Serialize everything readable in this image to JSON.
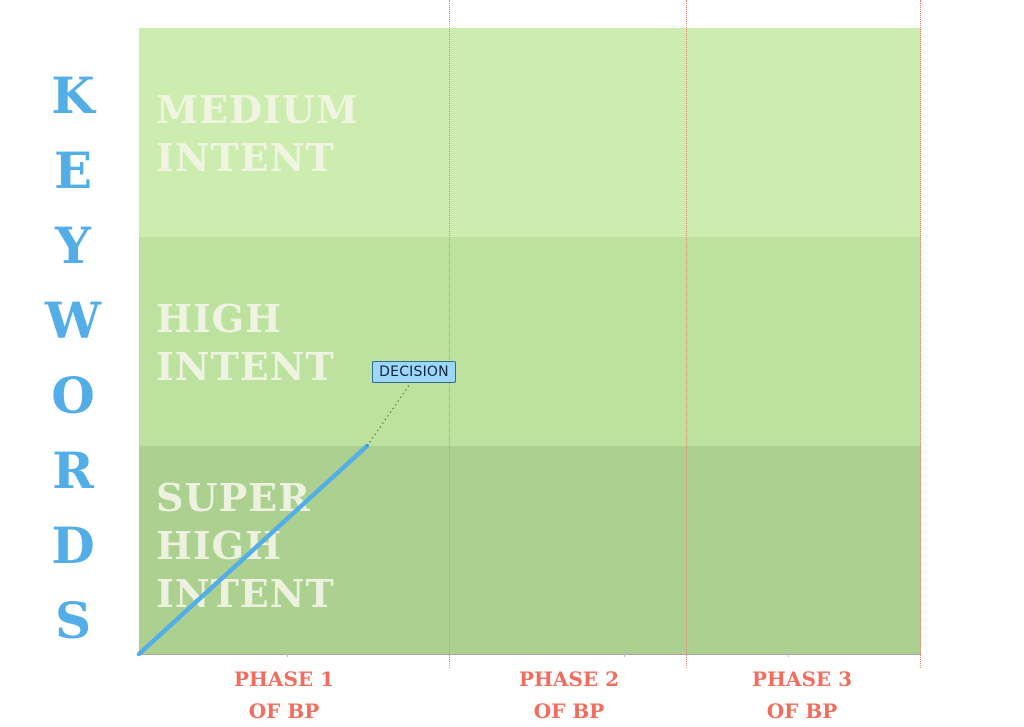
{
  "diagram": {
    "vertical_title_letters": [
      "K",
      "E",
      "Y",
      "W",
      "O",
      "R",
      "D",
      "S"
    ],
    "rows": [
      {
        "label": "MEDIUM\nINTENT"
      },
      {
        "label": "HIGH\nINTENT"
      },
      {
        "label": "SUPER\nHIGH\nINTENT"
      }
    ],
    "phases": [
      {
        "label": "PHASE 1\nOF BP"
      },
      {
        "label": "PHASE 2\nOF BP"
      },
      {
        "label": "PHASE 3\nOF BP"
      }
    ],
    "callout": {
      "label": "DECISION"
    }
  },
  "colors": {
    "title_blue": "#53aee8",
    "phase_red": "#f26d5e",
    "medium_band": "#ccedaf",
    "high_band": "#bde2a0",
    "super_band": "#abd08f",
    "trajectory_blue": "#53aee8",
    "callout_fill": "#9ed7fb"
  }
}
